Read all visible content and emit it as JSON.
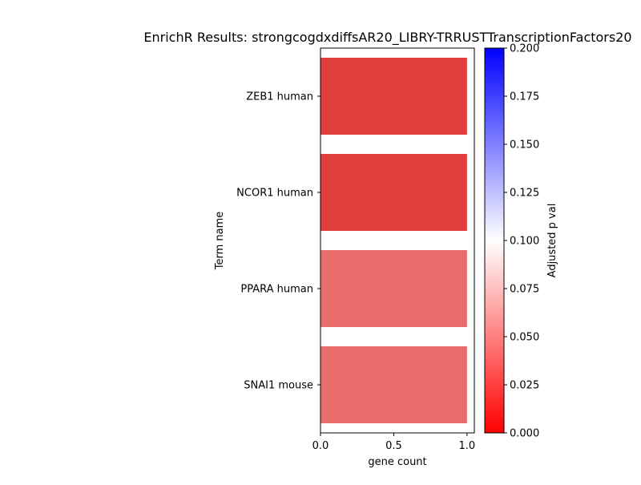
{
  "chart_data": {
    "type": "bar",
    "orientation": "horizontal",
    "title": "EnrichR Results: strongcogdxdiffsAR20_LIBRY-TRRUSTTranscriptionFactors20",
    "xlabel": "gene count",
    "ylabel": "Term name",
    "categories": [
      "ZEB1 human",
      "NCOR1 human",
      "PPARA human",
      "SNAI1 mouse"
    ],
    "values": [
      1,
      1,
      1,
      1
    ],
    "adjusted_p_values": [
      0.018,
      0.018,
      0.046,
      0.046
    ],
    "bar_colors": [
      "#e23e3e",
      "#e23e3e",
      "#ea6d6d",
      "#ea6d6d"
    ],
    "xlim": [
      0.0,
      1.05
    ],
    "xticks": [
      "0.0",
      "0.5",
      "1.0"
    ],
    "xtick_values": [
      0.0,
      0.5,
      1.0
    ],
    "grid": false,
    "colorbar": {
      "label": "Adjusted p val",
      "range": [
        0.0,
        0.2
      ],
      "ticks": [
        "0.000",
        "0.025",
        "0.050",
        "0.075",
        "0.100",
        "0.125",
        "0.150",
        "0.175",
        "0.200"
      ],
      "tick_values": [
        0.0,
        0.025,
        0.05,
        0.075,
        0.1,
        0.125,
        0.15,
        0.175,
        0.2
      ],
      "colormap": [
        "#ff0000",
        "#ffffff",
        "#0000ff"
      ]
    }
  }
}
